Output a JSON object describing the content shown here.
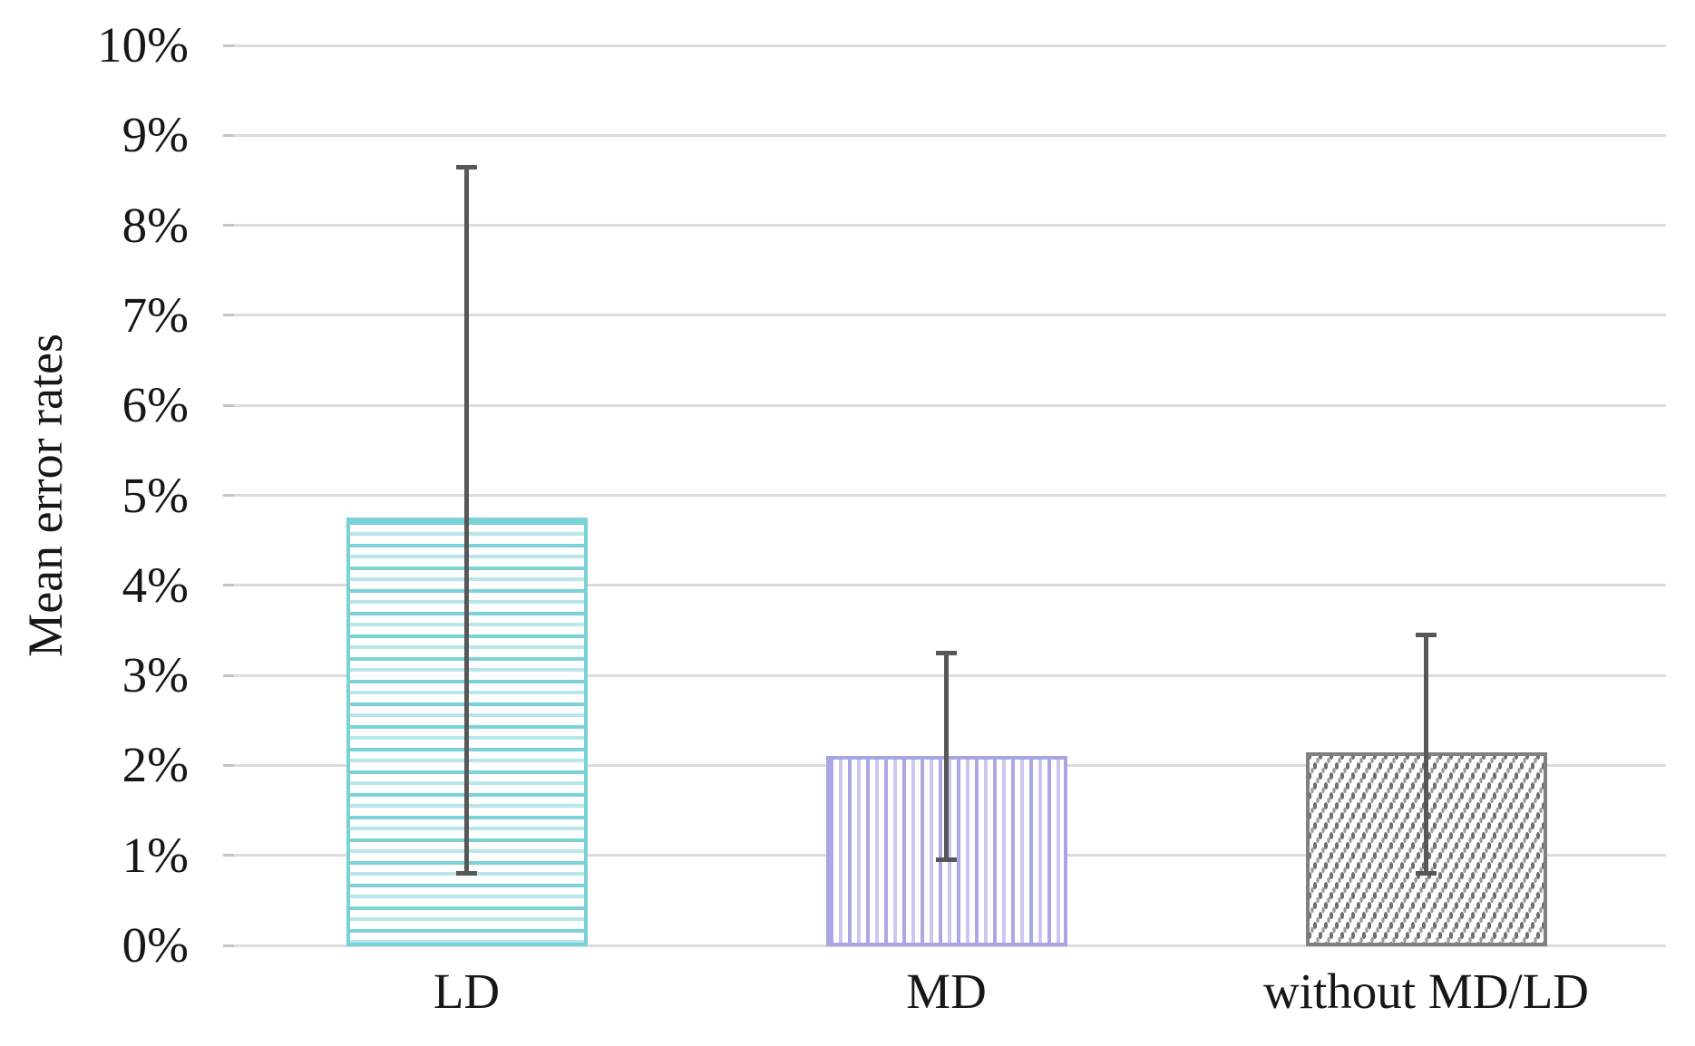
{
  "chart_data": {
    "type": "bar",
    "title": "",
    "xlabel": "",
    "ylabel": "Mean error rates",
    "categories": [
      "LD",
      "MD",
      "without MD/LD"
    ],
    "values": [
      4.75,
      2.1,
      2.15
    ],
    "error_low": [
      0.8,
      0.95,
      0.8
    ],
    "error_high": [
      8.65,
      3.25,
      3.45
    ],
    "ylim": [
      0,
      10
    ],
    "ytick_labels": [
      "0%",
      "1%",
      "2%",
      "3%",
      "4%",
      "5%",
      "6%",
      "7%",
      "8%",
      "9%",
      "10%"
    ],
    "grid": true,
    "legend": false,
    "bar_styles": [
      {
        "pattern": "horizontal-stripes",
        "color": "#7cd3d7",
        "light": "#b7e7e9",
        "border": "#79d2d6"
      },
      {
        "pattern": "vertical-stripes",
        "color": "#a9a9e6",
        "light": "#c9c9f0",
        "border": "#a6a6e4"
      },
      {
        "pattern": "dotted-diamond",
        "color": "#6f6f6f",
        "light": "#9c9c9c",
        "border": "#808080"
      }
    ],
    "colors": {
      "error_bar": "#575757",
      "gridline": "#dcdcdc",
      "tick": "#c4c4c4",
      "text": "#171717",
      "background": "#ffffff"
    }
  }
}
